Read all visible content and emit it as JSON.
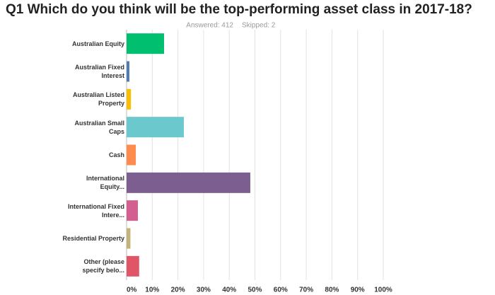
{
  "chart_data": {
    "type": "barh",
    "title": "Q1 Which do you think will be the top-performing asset class in 2017-18?",
    "answered": "Answered: 412",
    "skipped": "Skipped: 2",
    "categories": [
      "Australian Equity",
      "Australian Fixed Interest",
      "Australian Listed Property",
      "Australian Small Caps",
      "Cash",
      "International Equity...",
      "International Fixed Intere...",
      "Residential Property",
      "Other (please specify belo..."
    ],
    "values": [
      14.6,
      1.1,
      1.7,
      22.3,
      3.6,
      48.2,
      4.4,
      1.5,
      4.9
    ],
    "colors": [
      "#00bf6f",
      "#507cb6",
      "#f9be00",
      "#6bc8cd",
      "#ff8b4f",
      "#7d5e90",
      "#d25f90",
      "#c4b47a",
      "#e05666"
    ],
    "xlim": [
      0,
      100
    ],
    "xticks": [
      {
        "value": 0,
        "label": "0%"
      },
      {
        "value": 10,
        "label": "10%"
      },
      {
        "value": 20,
        "label": "20%"
      },
      {
        "value": 30,
        "label": "30%"
      },
      {
        "value": 40,
        "label": "40%"
      },
      {
        "value": 50,
        "label": "50%"
      },
      {
        "value": 60,
        "label": "60%"
      },
      {
        "value": 70,
        "label": "70%"
      },
      {
        "value": 80,
        "label": "80%"
      },
      {
        "value": 90,
        "label": "90%"
      },
      {
        "value": 100,
        "label": "100%"
      }
    ],
    "grid": true
  }
}
